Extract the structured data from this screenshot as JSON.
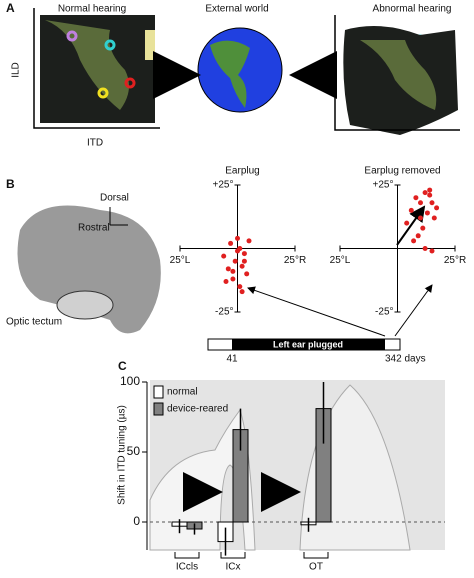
{
  "panels": {
    "a": {
      "letter": "A",
      "left_title": "Normal hearing",
      "center_title": "External world",
      "right_title": "Abnormal hearing",
      "y_label": "ILD",
      "x_label": "ITD"
    },
    "b": {
      "letter": "B",
      "dorsal": "Dorsal",
      "rostral": "Rostral",
      "tectum": "Optic tectum",
      "timeline": {
        "label": "Left ear plugged",
        "start": "41",
        "end": "342 days"
      }
    },
    "c": {
      "letter": "C"
    }
  },
  "chart_data": [
    {
      "type": "scatter",
      "title": "Earplug",
      "color": "#e02020",
      "x": [
        -6,
        -4,
        -3,
        -2,
        -1,
        0,
        1,
        2,
        3,
        4,
        5,
        -5,
        0,
        2,
        -2,
        1,
        3
      ],
      "values": [
        -3,
        -8,
        2,
        -12,
        -5,
        -1,
        -15,
        -7,
        -2,
        -10,
        3,
        -13,
        4,
        -17,
        -9,
        0,
        -5
      ],
      "xlim": [
        -25,
        25
      ],
      "ylim": [
        -25,
        25
      ],
      "xticks": [
        {
          "value": -25,
          "label": "25°L"
        },
        {
          "value": 25,
          "label": "25°R"
        }
      ],
      "yticks": [
        {
          "value": 25,
          "label": "+25°"
        },
        {
          "value": -25,
          "label": "-25°"
        }
      ]
    },
    {
      "type": "scatter",
      "title": "Earplug removed",
      "color": "#e02020",
      "x": [
        4,
        6,
        8,
        10,
        12,
        14,
        15,
        16,
        11,
        9,
        13,
        17,
        7,
        12,
        15,
        10,
        14
      ],
      "values": [
        10,
        15,
        20,
        18,
        22,
        21,
        18,
        12,
        8,
        5,
        14,
        16,
        3,
        0,
        -1,
        12,
        23
      ],
      "xlim": [
        -25,
        25
      ],
      "ylim": [
        -25,
        25
      ],
      "xticks": [
        {
          "value": -25,
          "label": "25°L"
        },
        {
          "value": 25,
          "label": "25°R"
        }
      ],
      "yticks": [
        {
          "value": 25,
          "label": "+25°"
        },
        {
          "value": -25,
          "label": "-25°"
        }
      ]
    },
    {
      "type": "bar",
      "y_label": "Shift in ITD tuning (µs)",
      "categories": [
        "ICcls",
        "ICx",
        "OT"
      ],
      "series": [
        {
          "name": "normal",
          "color": "#ffffff",
          "values": [
            -3,
            -14,
            -2
          ],
          "errors": [
            5,
            10,
            5
          ]
        },
        {
          "name": "device-reared",
          "color": "#808080",
          "values": [
            -5,
            66,
            81
          ],
          "errors": [
            4,
            15,
            25
          ]
        }
      ],
      "ylim": [
        -20,
        100
      ],
      "yticks": [
        0,
        50,
        100
      ]
    }
  ]
}
